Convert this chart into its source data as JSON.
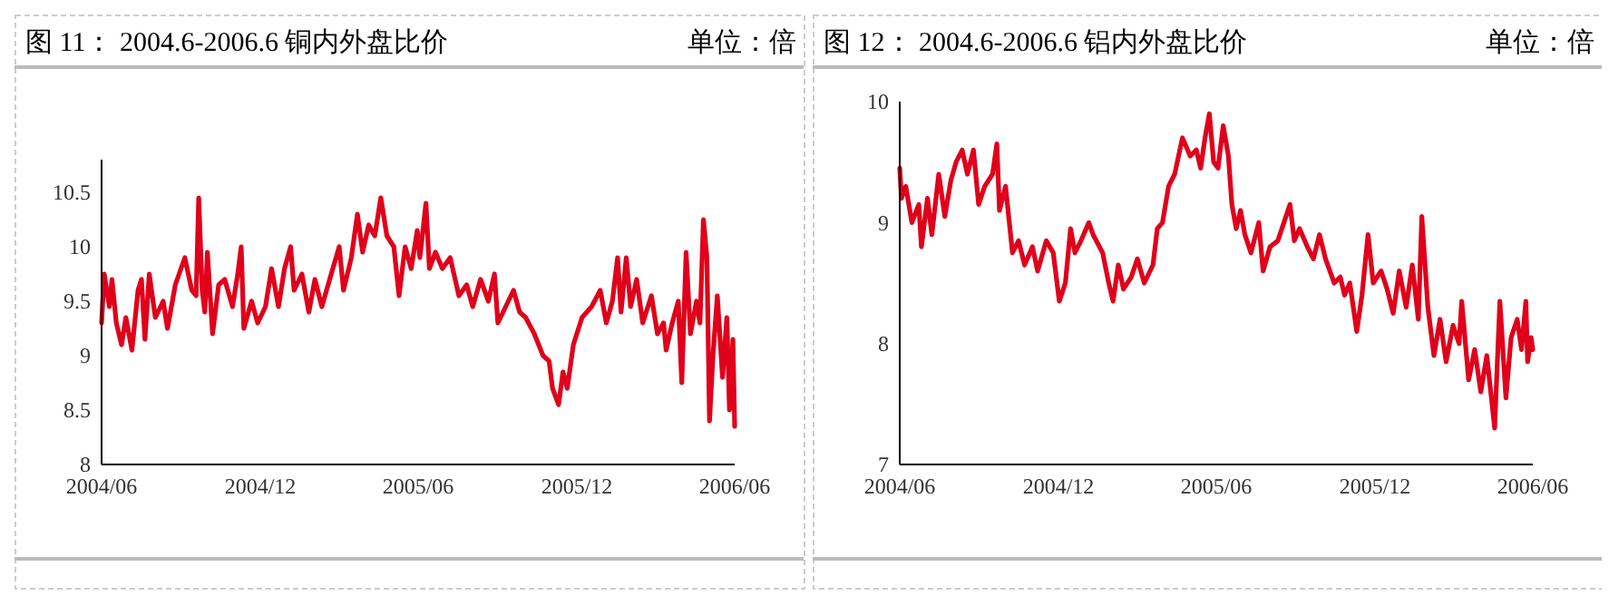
{
  "chart_data": [
    {
      "type": "line",
      "title": "图 11：  2004.6-2006.6  铜内外盘比价",
      "ylabel": "单位：倍",
      "xlim": [
        "2004-06-01",
        "2006-06-01"
      ],
      "xticks": [
        {
          "value": "2004-06-01",
          "label": "2004/06"
        },
        {
          "value": "2004-12-01",
          "label": "2004/12"
        },
        {
          "value": "2005-06-01",
          "label": "2005/06"
        },
        {
          "value": "2005-12-01",
          "label": "2005/12"
        },
        {
          "value": "2006-06-01",
          "label": "2006/06"
        }
      ],
      "ylim": [
        8,
        10.8
      ],
      "yticks": [
        8,
        8.5,
        9,
        9.5,
        10,
        10.5
      ],
      "grid": false,
      "marker": "none",
      "line_style": "solid",
      "series": [
        {
          "color": "#e0001b",
          "x": [
            "2004-06-01",
            "2004-06-04",
            "2004-06-10",
            "2004-06-13",
            "2004-06-18",
            "2004-06-24",
            "2004-06-29",
            "2004-07-06",
            "2004-07-13",
            "2004-07-17",
            "2004-07-21",
            "2004-07-26",
            "2004-08-02",
            "2004-08-11",
            "2004-08-16",
            "2004-08-25",
            "2004-09-05",
            "2004-09-13",
            "2004-09-18",
            "2004-09-21",
            "2004-09-25",
            "2004-09-28",
            "2004-10-01",
            "2004-10-07",
            "2004-10-14",
            "2004-10-21",
            "2004-10-30",
            "2004-11-05",
            "2004-11-09",
            "2004-11-12",
            "2004-11-21",
            "2004-11-28",
            "2004-12-07",
            "2004-12-14",
            "2004-12-22",
            "2004-12-29",
            "2005-01-05",
            "2005-01-09",
            "2005-01-18",
            "2005-01-26",
            "2005-02-02",
            "2005-02-10",
            "2005-02-19",
            "2005-03-02",
            "2005-03-07",
            "2005-03-16",
            "2005-03-23",
            "2005-03-29",
            "2005-04-05",
            "2005-04-12",
            "2005-04-19",
            "2005-04-26",
            "2005-05-04",
            "2005-05-10",
            "2005-05-17",
            "2005-05-24",
            "2005-05-31",
            "2005-06-03",
            "2005-06-10",
            "2005-06-14",
            "2005-06-21",
            "2005-06-29",
            "2005-07-08",
            "2005-07-18",
            "2005-07-27",
            "2005-08-03",
            "2005-08-12",
            "2005-08-21",
            "2005-08-28",
            "2005-09-01",
            "2005-09-10",
            "2005-09-19",
            "2005-09-26",
            "2005-10-03",
            "2005-10-13",
            "2005-10-23",
            "2005-10-30",
            "2005-11-03",
            "2005-11-10",
            "2005-11-15",
            "2005-11-20",
            "2005-11-27",
            "2005-12-07",
            "2005-12-18",
            "2005-12-28",
            "2006-01-04",
            "2006-01-11",
            "2006-01-17",
            "2006-01-21",
            "2006-01-27",
            "2006-02-01",
            "2006-02-08",
            "2006-02-15",
            "2006-02-25",
            "2006-03-04",
            "2006-03-11",
            "2006-03-14",
            "2006-03-21",
            "2006-03-28",
            "2006-04-01",
            "2006-04-06",
            "2006-04-11",
            "2006-04-18",
            "2006-04-22",
            "2006-04-26",
            "2006-04-30",
            "2006-05-03",
            "2006-05-07",
            "2006-05-12",
            "2006-05-18",
            "2006-05-23",
            "2006-05-26",
            "2006-05-30",
            "2006-06-01"
          ],
          "values": [
            9.3,
            9.75,
            9.45,
            9.7,
            9.3,
            9.1,
            9.35,
            9.05,
            9.6,
            9.7,
            9.15,
            9.75,
            9.35,
            9.5,
            9.25,
            9.65,
            9.9,
            9.6,
            9.55,
            10.45,
            9.6,
            9.4,
            9.95,
            9.2,
            9.65,
            9.7,
            9.45,
            9.75,
            10.0,
            9.25,
            9.5,
            9.3,
            9.45,
            9.8,
            9.45,
            9.8,
            10.0,
            9.6,
            9.75,
            9.4,
            9.7,
            9.45,
            9.7,
            10.0,
            9.6,
            9.9,
            10.3,
            9.95,
            10.2,
            10.1,
            10.45,
            10.1,
            10.0,
            9.55,
            10.0,
            9.8,
            10.15,
            9.9,
            10.4,
            9.8,
            9.95,
            9.8,
            9.9,
            9.55,
            9.65,
            9.45,
            9.7,
            9.5,
            9.75,
            9.3,
            9.45,
            9.6,
            9.4,
            9.35,
            9.2,
            9.0,
            8.95,
            8.7,
            8.55,
            8.85,
            8.7,
            9.1,
            9.35,
            9.45,
            9.6,
            9.3,
            9.5,
            9.9,
            9.4,
            9.9,
            9.45,
            9.7,
            9.3,
            9.55,
            9.2,
            9.3,
            9.05,
            9.3,
            9.5,
            8.75,
            9.95,
            9.2,
            9.5,
            9.3,
            10.25,
            9.9,
            8.4,
            9.0,
            9.55,
            8.8,
            9.35,
            8.5,
            9.15,
            8.35
          ]
        }
      ]
    },
    {
      "type": "line",
      "title": "图 12：  2004.6-2006.6  铝内外盘比价",
      "ylabel": "单位：倍",
      "xlim": [
        "2004-06-01",
        "2006-06-01"
      ],
      "xticks": [
        {
          "value": "2004-06-01",
          "label": "2004/06"
        },
        {
          "value": "2004-12-01",
          "label": "2004/12"
        },
        {
          "value": "2005-06-01",
          "label": "2005/06"
        },
        {
          "value": "2005-12-01",
          "label": "2005/12"
        },
        {
          "value": "2006-06-01",
          "label": "2006/06"
        }
      ],
      "ylim": [
        7,
        10
      ],
      "yticks": [
        7,
        8,
        9,
        10
      ],
      "grid": false,
      "marker": "none",
      "line_style": "solid",
      "series": [
        {
          "color": "#e0001b",
          "x": [
            "2004-06-01",
            "2004-06-03",
            "2004-06-08",
            "2004-06-15",
            "2004-06-23",
            "2004-06-26",
            "2004-07-03",
            "2004-07-08",
            "2004-07-16",
            "2004-07-23",
            "2004-07-30",
            "2004-08-05",
            "2004-08-12",
            "2004-08-18",
            "2004-08-25",
            "2004-08-31",
            "2004-09-07",
            "2004-09-16",
            "2004-09-21",
            "2004-09-24",
            "2004-10-01",
            "2004-10-09",
            "2004-10-16",
            "2004-10-23",
            "2004-11-01",
            "2004-11-07",
            "2004-11-17",
            "2004-11-25",
            "2004-12-02",
            "2004-12-09",
            "2004-12-15",
            "2004-12-20",
            "2004-12-27",
            "2005-01-05",
            "2005-01-10",
            "2005-01-21",
            "2005-01-28",
            "2005-02-02",
            "2005-02-08",
            "2005-02-14",
            "2005-02-23",
            "2005-03-02",
            "2005-03-10",
            "2005-03-20",
            "2005-03-25",
            "2005-03-31",
            "2005-04-07",
            "2005-04-14",
            "2005-04-23",
            "2005-05-02",
            "2005-05-09",
            "2005-05-14",
            "2005-05-19",
            "2005-05-24",
            "2005-05-29",
            "2005-06-03",
            "2005-06-09",
            "2005-06-15",
            "2005-06-19",
            "2005-06-24",
            "2005-06-29",
            "2005-07-04",
            "2005-07-11",
            "2005-07-20",
            "2005-07-25",
            "2005-08-02",
            "2005-08-11",
            "2005-08-18",
            "2005-08-25",
            "2005-08-30",
            "2005-09-05",
            "2005-09-14",
            "2005-09-21",
            "2005-09-28",
            "2005-10-05",
            "2005-10-15",
            "2005-10-22",
            "2005-10-27",
            "2005-11-02",
            "2005-11-10",
            "2005-11-16",
            "2005-11-23",
            "2005-11-29",
            "2005-12-08",
            "2005-12-15",
            "2005-12-22",
            "2005-12-29",
            "2006-01-06",
            "2006-01-13",
            "2006-01-20",
            "2006-01-24",
            "2006-01-31",
            "2006-02-07",
            "2006-02-14",
            "2006-02-21",
            "2006-03-01",
            "2006-03-08",
            "2006-03-11",
            "2006-03-19",
            "2006-03-26",
            "2006-04-02",
            "2006-04-09",
            "2006-04-18",
            "2006-04-24",
            "2006-05-01",
            "2006-05-07",
            "2006-05-14",
            "2006-05-19",
            "2006-05-24",
            "2006-05-26",
            "2006-05-30",
            "2006-06-01"
          ],
          "values": [
            9.45,
            9.2,
            9.3,
            9.0,
            9.15,
            8.8,
            9.2,
            8.9,
            9.4,
            9.05,
            9.35,
            9.5,
            9.6,
            9.4,
            9.6,
            9.15,
            9.3,
            9.4,
            9.65,
            9.1,
            9.3,
            8.75,
            8.85,
            8.65,
            8.8,
            8.6,
            8.85,
            8.75,
            8.35,
            8.5,
            8.95,
            8.75,
            8.85,
            9.0,
            8.9,
            8.75,
            8.5,
            8.35,
            8.65,
            8.45,
            8.55,
            8.7,
            8.5,
            8.65,
            8.95,
            9.0,
            9.3,
            9.4,
            9.7,
            9.55,
            9.6,
            9.45,
            9.7,
            9.9,
            9.5,
            9.45,
            9.8,
            9.55,
            9.15,
            8.95,
            9.1,
            8.9,
            8.75,
            9.0,
            8.6,
            8.8,
            8.85,
            9.0,
            9.15,
            8.85,
            8.95,
            8.8,
            8.7,
            8.9,
            8.7,
            8.5,
            8.55,
            8.4,
            8.5,
            8.1,
            8.4,
            8.9,
            8.5,
            8.6,
            8.45,
            8.25,
            8.6,
            8.3,
            8.65,
            8.2,
            9.05,
            8.3,
            7.9,
            8.2,
            7.85,
            8.15,
            8.0,
            8.35,
            7.7,
            7.95,
            7.6,
            7.9,
            7.3,
            8.35,
            7.55,
            8.05,
            8.2,
            7.95,
            8.35,
            7.85,
            8.05,
            7.95
          ]
        }
      ]
    }
  ]
}
